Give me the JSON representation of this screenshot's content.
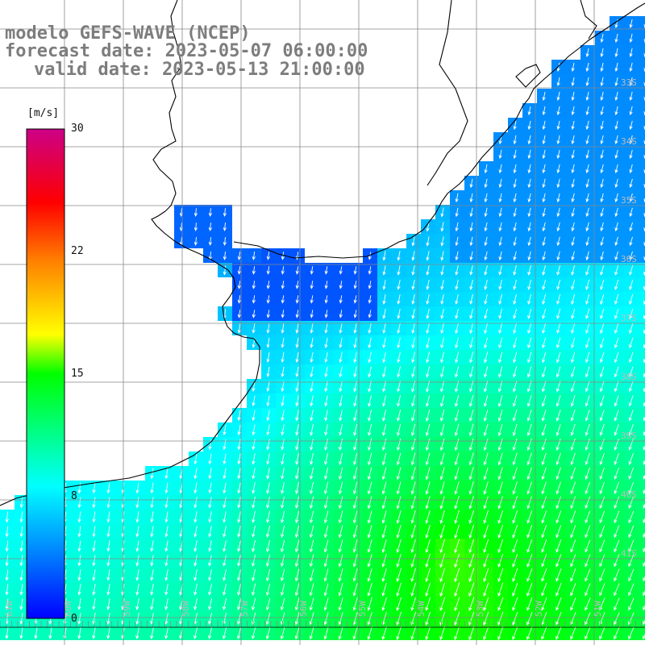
{
  "header": {
    "model": "modelo GEFS-WAVE (NCEP)",
    "forecast_date": "forecast date: 2023-05-07 06:00:00",
    "valid_date": "valid date: 2023-05-13 21:00:00"
  },
  "colorbar": {
    "unit": "[m/s]",
    "ticks": [
      "30",
      "22",
      "15",
      "8",
      "0"
    ],
    "min": 0,
    "max": 30,
    "colors": [
      "#0000ff",
      "#00aaff",
      "#00ffff",
      "#00ff00",
      "#ffff00",
      "#ff8000",
      "#ff0000",
      "#cc0088"
    ]
  },
  "grid": {
    "longitude_labels": [
      "61W",
      "60W",
      "59W",
      "58W",
      "57W",
      "56W",
      "55W",
      "54W",
      "53W",
      "52W",
      "51W"
    ],
    "latitude_labels": [
      "33S",
      "34S",
      "35S",
      "36S",
      "37S",
      "38S",
      "39S",
      "40S",
      "41S"
    ]
  },
  "field": {
    "variable": "wind speed",
    "arrow_color": "#ffffff",
    "dominant_direction": "from north-northeast toward south-southwest"
  }
}
